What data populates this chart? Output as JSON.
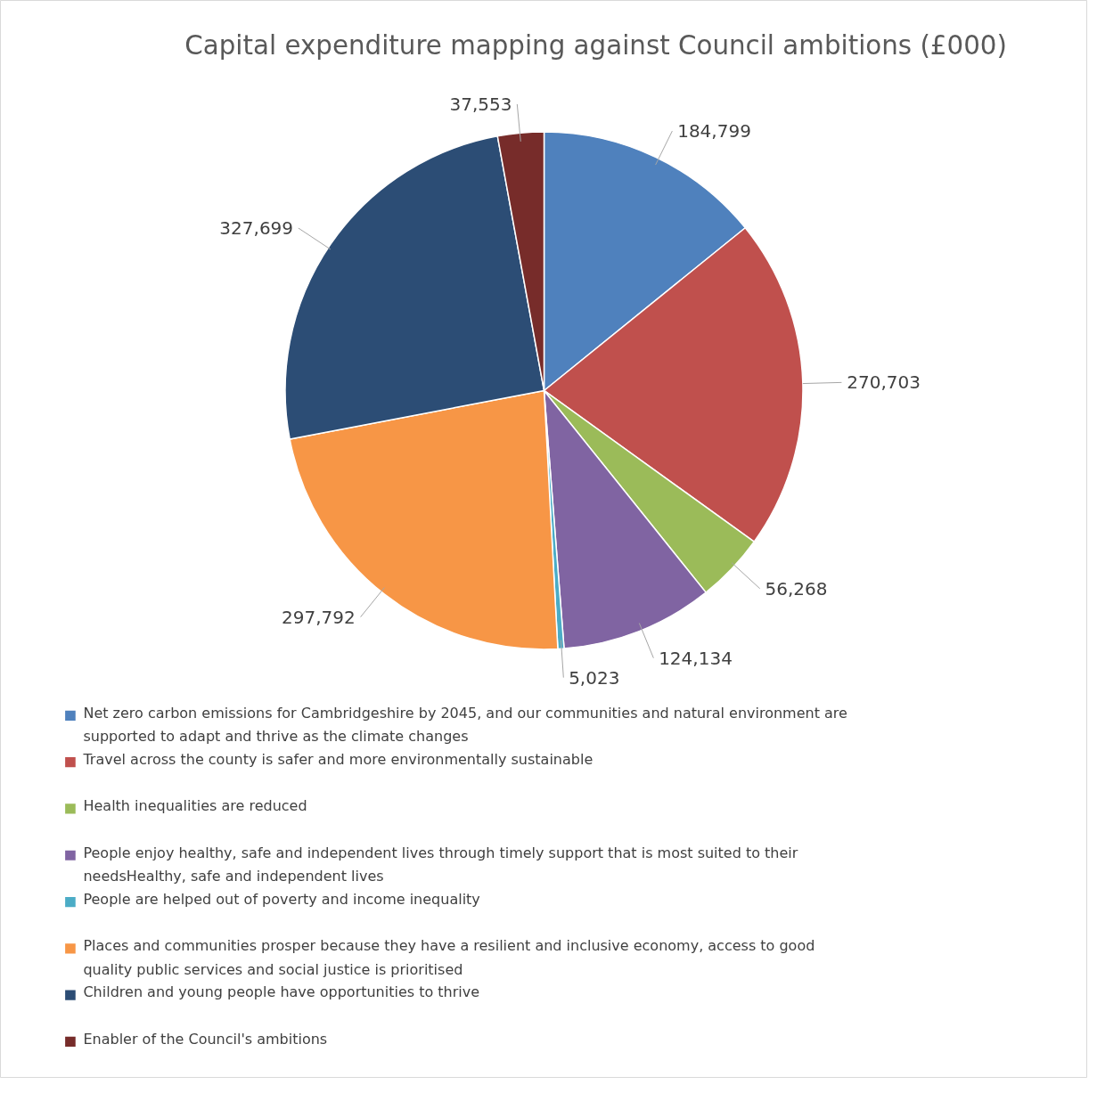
{
  "chart_data": {
    "type": "pie",
    "title": "Capital expenditure mapping against Council ambitions (£000)",
    "categories": [
      "Net zero carbon emissions for Cambridgeshire by 2045, and our communities and natural environment are supported to adapt and thrive as the climate changes",
      "Travel across the county is safer and more environmentally sustainable",
      "Health inequalities are reduced",
      "People enjoy healthy, safe and independent lives through timely support that is most suited to their needsHealthy, safe and independent lives",
      "People are helped out of poverty and income inequality",
      "Places and communities prosper because they have a resilient and inclusive economy, access to good quality public services and social justice is prioritised",
      "Children and young people have opportunities to thrive",
      "Enabler of the Council's ambitions"
    ],
    "values": [
      184799,
      270703,
      56268,
      124134,
      5023,
      297792,
      327699,
      37553
    ],
    "colors": [
      "#4f81bd",
      "#c0504d",
      "#9bbb59",
      "#8064a2",
      "#4bacc6",
      "#f79646",
      "#2c4d75",
      "#772c2a"
    ],
    "value_labels": [
      "184,799",
      "270,703",
      "56,268",
      "124,134",
      "5,023",
      "297,792",
      "327,699",
      "37,553"
    ],
    "legend": "bottom"
  }
}
